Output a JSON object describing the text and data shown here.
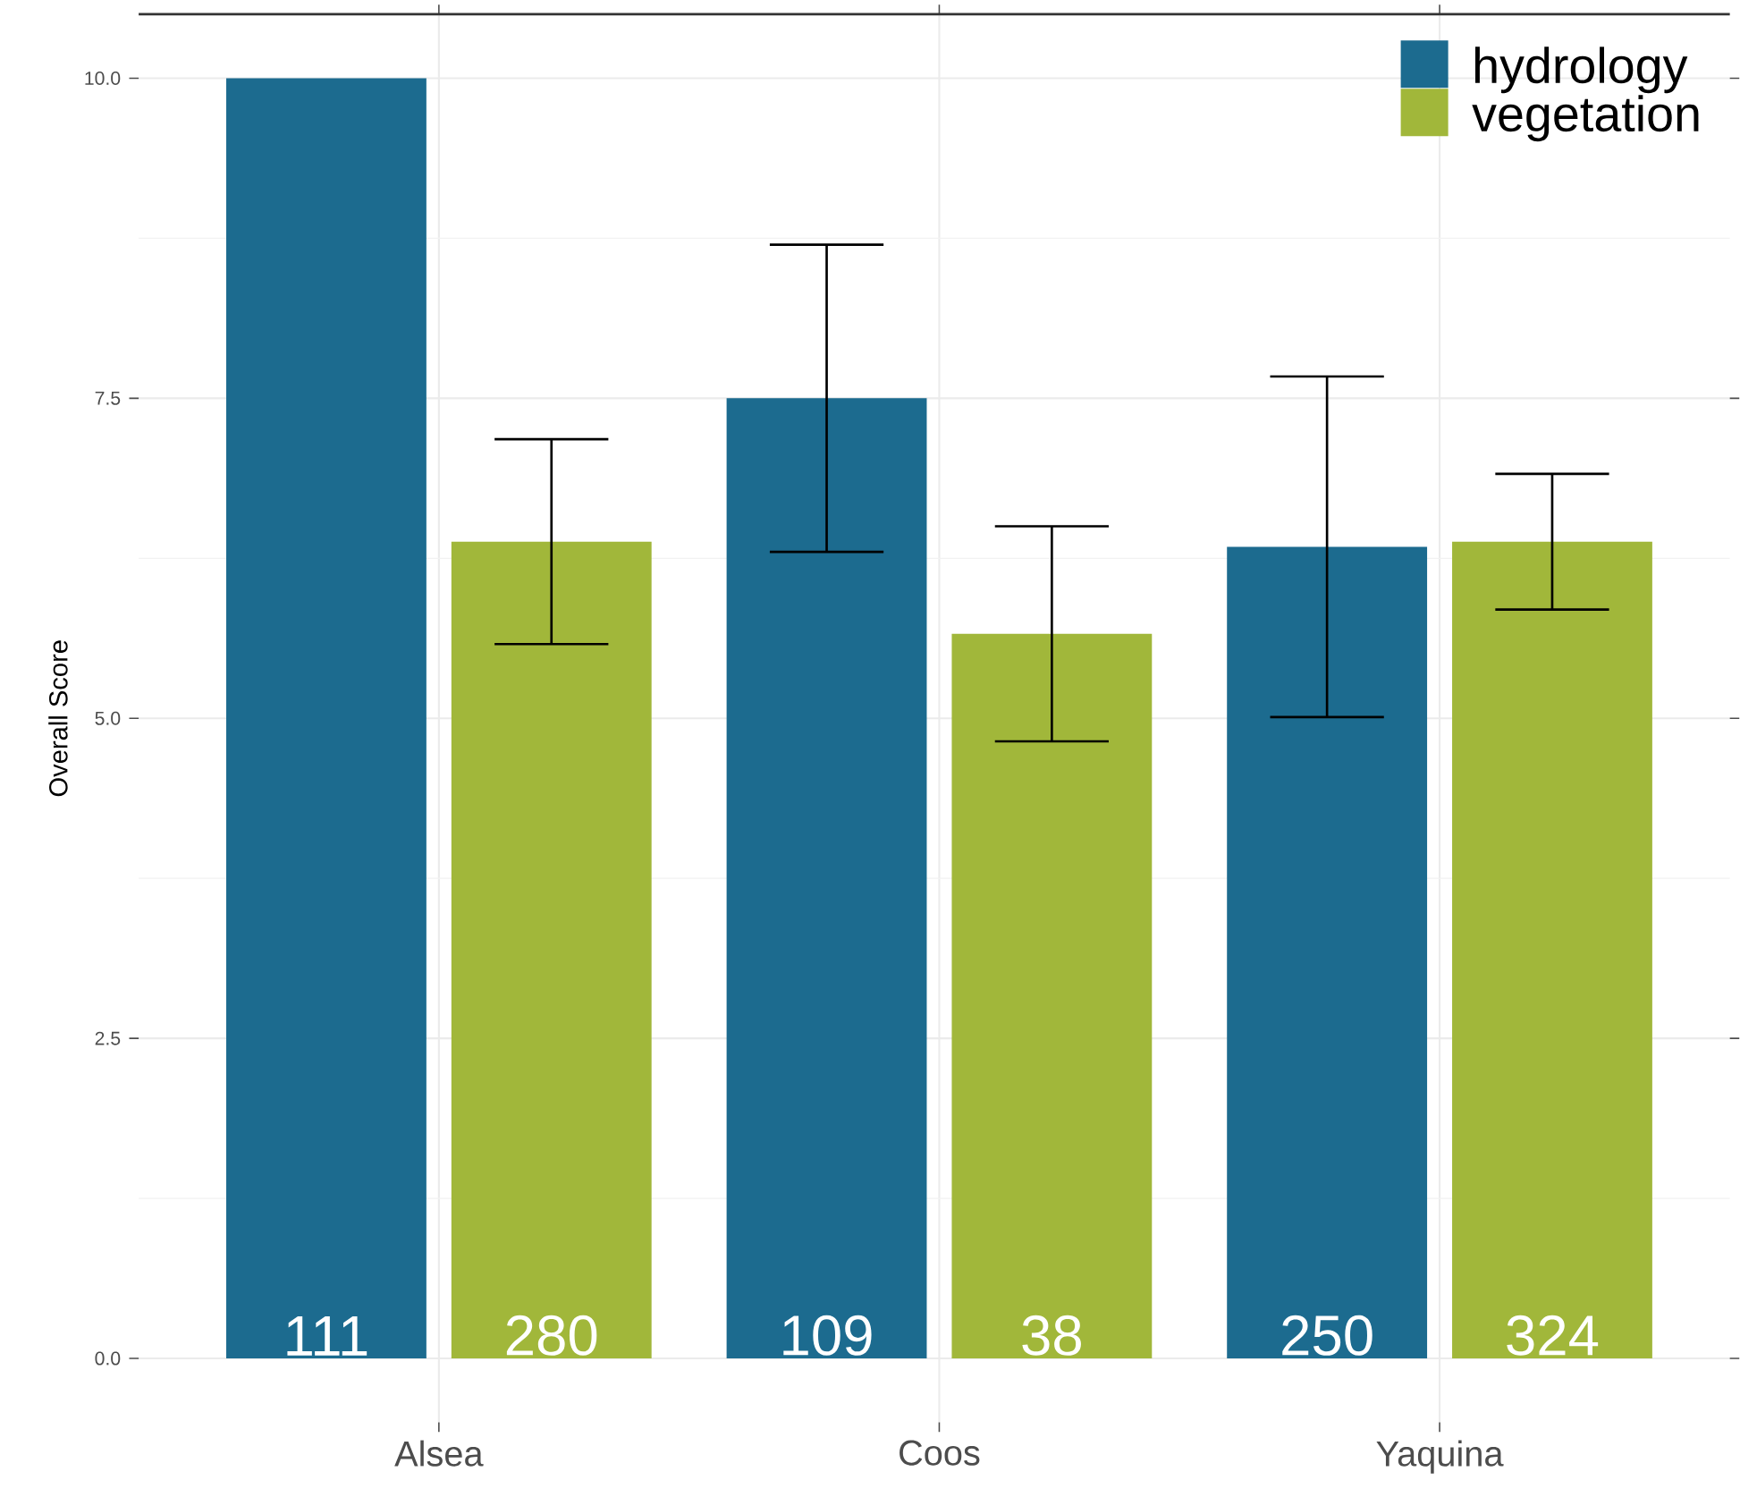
{
  "chart_data": {
    "type": "bar",
    "ylabel": "Overall Score",
    "categories": [
      "Alsea",
      "Coos",
      "Yaquina"
    ],
    "series": [
      {
        "name": "hydrology",
        "color": "#1c6b8f",
        "values": [
          10.0,
          7.5,
          6.34
        ],
        "errors": [
          null,
          1.2,
          1.33
        ]
      },
      {
        "name": "vegetation",
        "color": "#a1b73a",
        "values": [
          6.38,
          5.66,
          6.38
        ],
        "errors": [
          0.8,
          0.84,
          0.53
        ]
      }
    ],
    "annotations": [
      "111",
      "280",
      "109",
      "38",
      "250",
      "324"
    ],
    "ylim": [
      -0.5,
      10.5
    ],
    "yticks": [
      {
        "value": 0,
        "label": "0.0"
      },
      2.5,
      {
        "value": 5,
        "label": "5.0"
      },
      7.5,
      {
        "value": 10,
        "label": "10.0"
      }
    ],
    "grid": true,
    "legend": "top right"
  }
}
